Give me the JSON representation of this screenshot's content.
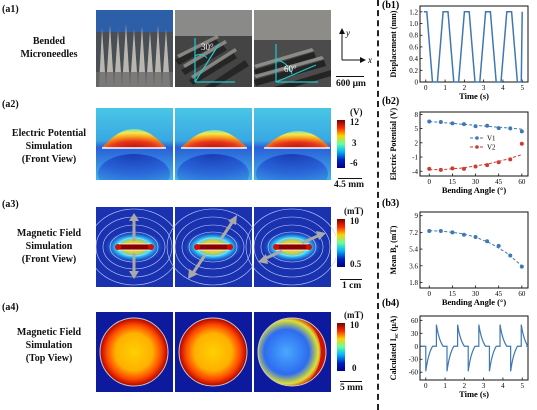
{
  "panels": {
    "a1": {
      "label": "(a1)",
      "title_lines": [
        "Bended",
        "Microneedles"
      ],
      "angle1": "30°",
      "angle2": "60°",
      "axis_y": "y",
      "axis_x": "x",
      "scalebar": "600 μm"
    },
    "a2": {
      "label": "(a2)",
      "title_lines": [
        "Electric Potential",
        "Simulation",
        "(Front View)"
      ],
      "cb_unit": "(V)",
      "cb_max": "12",
      "cb_mid": "3",
      "cb_min": "-6",
      "scalebar": "4.5 mm"
    },
    "a3": {
      "label": "(a3)",
      "title_lines": [
        "Magnetic Field",
        "Simulation",
        "(Front View)"
      ],
      "cb_unit": "(mT)",
      "cb_max": "10",
      "cb_min": "0.5",
      "scalebar": "1 cm"
    },
    "a4": {
      "label": "(a4)",
      "title_lines": [
        "Magnetic Field",
        "Simulation",
        "(Top View)"
      ],
      "cb_unit": "(mT)",
      "cb_max": "10",
      "cb_min": "0",
      "scalebar": "5 mm"
    }
  },
  "chart_data": [
    {
      "id": "b1",
      "label": "(b1)",
      "type": "line",
      "xlabel": "Time (s)",
      "ylabel": "Displacement (mm)",
      "xlim": [
        -0.3,
        5.3
      ],
      "ylim": [
        0,
        1.3
      ],
      "xticks": [
        0,
        1,
        2,
        3,
        4,
        5
      ],
      "yticks": [
        0,
        0.2,
        0.4,
        0.6,
        0.8,
        1.0,
        1.2
      ],
      "ytick_labels": [
        "0",
        "0.2",
        "0.4",
        "0.6",
        "0.8",
        "1.0",
        "1.2"
      ],
      "x": [
        -0.1,
        0,
        0.05,
        0.35,
        0.55,
        0.6,
        0.9,
        1.1,
        1.15,
        1.45,
        1.65,
        1.7,
        2.0,
        2.2,
        2.25,
        2.55,
        2.75,
        2.8,
        3.1,
        3.3,
        3.35,
        3.65,
        3.85,
        3.9,
        4.2,
        4.4,
        4.45,
        4.75,
        4.95,
        5.0
      ],
      "y": [
        1.2,
        1.2,
        1.2,
        0.0,
        0.0,
        0.0,
        1.2,
        1.2,
        1.2,
        0.0,
        0.0,
        0.0,
        1.2,
        1.2,
        1.2,
        0.0,
        0.0,
        0.0,
        1.2,
        1.2,
        1.2,
        0.0,
        0.0,
        0.0,
        1.2,
        1.2,
        1.2,
        0.0,
        0.0,
        1.2
      ],
      "color": "#3f78b4"
    },
    {
      "id": "b2",
      "label": "(b2)",
      "type": "scatter",
      "xlabel": "Bending Angle (°)",
      "ylabel": "Electric Potential (V)",
      "xlim": [
        -6,
        64
      ],
      "ylim": [
        -5,
        8.5
      ],
      "xticks": [
        0,
        15,
        30,
        45,
        60
      ],
      "yticks": [
        -4,
        -1,
        2,
        5,
        8
      ],
      "series": [
        {
          "name": "V1",
          "color": "#3f78b4",
          "x": [
            0,
            7.5,
            15,
            22.5,
            30,
            37.5,
            45,
            52.5,
            60
          ],
          "y": [
            6.5,
            6.4,
            6.1,
            5.95,
            5.5,
            5.6,
            5.1,
            5.05,
            4.4
          ],
          "fit_x": [
            0,
            60
          ],
          "fit_y": [
            6.5,
            4.9
          ]
        },
        {
          "name": "V2",
          "color": "#d03a30",
          "x": [
            0,
            7.5,
            15,
            22.5,
            30,
            37.5,
            45,
            52.5,
            60
          ],
          "y": [
            -3.5,
            -3.7,
            -3.4,
            -3.5,
            -3.0,
            -2.7,
            -2.1,
            -1.5,
            1.8
          ],
          "fit_x": [
            0,
            10,
            20,
            30,
            40,
            50,
            60
          ],
          "fit_y": [
            -3.7,
            -3.6,
            -3.35,
            -2.9,
            -2.3,
            -1.5,
            -0.5
          ]
        }
      ],
      "legend": "center-right"
    },
    {
      "id": "b3",
      "label": "(b3)",
      "type": "scatter",
      "xlabel": "Bending Angle (°)",
      "ylabel": "Mean B (mT)",
      "ylabel_sub": "z",
      "xlim": [
        -6,
        64
      ],
      "ylim": [
        1.2,
        9.4
      ],
      "xticks": [
        0,
        15,
        30,
        45,
        60
      ],
      "yticks": [
        1.8,
        3.6,
        5.4,
        7.2,
        9.0
      ],
      "series": [
        {
          "name": "",
          "color": "#3f78b4",
          "x": [
            0,
            7.5,
            15,
            22.5,
            30,
            37.5,
            45,
            52.5,
            60
          ],
          "y": [
            7.35,
            7.35,
            7.2,
            6.95,
            6.7,
            6.25,
            5.75,
            4.7,
            3.5
          ],
          "fit_x": [
            0,
            10,
            20,
            30,
            40,
            50,
            60
          ],
          "fit_y": [
            7.4,
            7.3,
            7.1,
            6.7,
            6.0,
            5.0,
            3.6
          ]
        }
      ]
    },
    {
      "id": "b4",
      "label": "(b4)",
      "type": "line",
      "xlabel": "Time (s)",
      "ylabel": "Calculated I (μA)",
      "ylabel_sub": "sc",
      "xlim": [
        -0.3,
        5.3
      ],
      "ylim": [
        -78,
        70
      ],
      "xticks": [
        0,
        1,
        2,
        3,
        4,
        5
      ],
      "yticks": [
        -60,
        -30,
        0,
        30,
        60
      ],
      "periods": [
        0,
        1.1,
        2.2,
        3.3,
        4.4
      ],
      "pos_peak": 50,
      "neg_peak": -58,
      "color": "#3f78b4"
    }
  ]
}
